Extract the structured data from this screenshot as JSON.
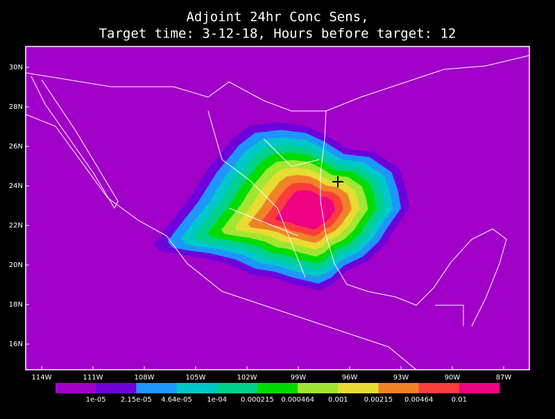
{
  "title": [
    "Adjoint 24hr Conc Sens,",
    "Target time: 3-12-18, Hours before target: 12"
  ],
  "lat_labels": [
    "30N",
    "28N",
    "26N",
    "24N",
    "22N",
    "20N",
    "18N",
    "16N"
  ],
  "lon_labels": [
    "114W",
    "111W",
    "108W",
    "105W",
    "102W",
    "99W",
    "96W",
    "93W",
    "90W",
    "87W"
  ],
  "colorbar": {
    "colors": [
      "#a000c8",
      "#6e00dc",
      "#1e96ff",
      "#00c8c8",
      "#00d28c",
      "#00dc00",
      "#a0e632",
      "#e6dc32",
      "#f08228",
      "#fa3c3c",
      "#f00082"
    ],
    "labels": [
      "1e-05",
      "2.15e-05",
      "4.64e-05",
      "1e-04",
      "0.000215",
      "0.000464",
      "0.001",
      "0.00215",
      "0.00464",
      "0.01"
    ]
  }
}
